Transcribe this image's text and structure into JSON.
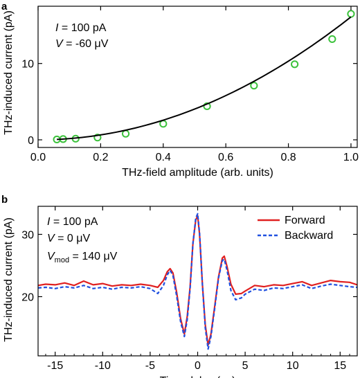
{
  "chart_data": [
    {
      "panel": "a",
      "type": "scatter",
      "xlabel": "THz-field amplitude (arb. units)",
      "ylabel": "THz-induced current (pA)",
      "xlim": [
        0,
        1.02
      ],
      "ylim": [
        -1,
        17.5
      ],
      "xticks": [
        0.0,
        0.2,
        0.4,
        0.6,
        0.8,
        1.0
      ],
      "xtick_labels": [
        "0.0",
        "0.2",
        "0.4",
        "0.6",
        "0.8",
        "1.0"
      ],
      "yticks": [
        0,
        10
      ],
      "ytick_labels": [
        "0",
        "10"
      ],
      "annotations": [
        "I = 100 pA",
        "V = -60 μV"
      ],
      "series": [
        {
          "kind": "markers",
          "color": "#3cc23c",
          "x": [
            0.06,
            0.08,
            0.12,
            0.19,
            0.28,
            0.4,
            0.54,
            0.69,
            0.82,
            0.94,
            1.0
          ],
          "y": [
            0.05,
            0.1,
            0.15,
            0.3,
            0.8,
            2.1,
            4.4,
            7.1,
            9.9,
            13.2,
            16.5
          ]
        },
        {
          "kind": "fit-line",
          "color": "#000000",
          "fit_form": "y = 16.1·x^2",
          "fit_coefficient": 16.1,
          "x_range": [
            0.06,
            1.0
          ]
        }
      ]
    },
    {
      "panel": "b",
      "type": "line",
      "xlabel": "Time delay (ps)",
      "ylabel": "THz-induced current (pA)",
      "xlim": [
        -16.8,
        16.8
      ],
      "ylim": [
        10.5,
        34.5
      ],
      "xticks": [
        -15,
        -10,
        -5,
        0,
        5,
        10,
        15
      ],
      "xtick_labels": [
        "-15",
        "-10",
        "-5",
        "0",
        "5",
        "10",
        "15"
      ],
      "yticks": [
        20,
        30
      ],
      "ytick_labels": [
        "20",
        "30"
      ],
      "annotations": [
        "I = 100 pA",
        "V = 0 μV",
        "V",
        "mod",
        " = 140 μV"
      ],
      "legend_position": "top-right",
      "series": [
        {
          "name": "Forward",
          "color": "#e02020",
          "style": "solid",
          "x": [
            -16.8,
            -16,
            -15,
            -14,
            -13,
            -12,
            -11,
            -10,
            -9,
            -8,
            -7,
            -6,
            -5,
            -4.2,
            -3.6,
            -3.2,
            -2.9,
            -2.6,
            -2.2,
            -1.8,
            -1.4,
            -1.1,
            -0.8,
            -0.5,
            -0.2,
            0,
            0.2,
            0.5,
            0.8,
            1.1,
            1.4,
            1.8,
            2.2,
            2.6,
            2.8,
            3.1,
            3.5,
            4.0,
            4.6,
            5,
            6,
            7,
            8,
            9,
            10,
            11,
            12,
            13,
            14,
            15,
            16,
            16.8
          ],
          "y": [
            21.8,
            22.0,
            21.9,
            22.2,
            21.8,
            22.5,
            21.9,
            22.1,
            21.7,
            21.9,
            21.8,
            22.0,
            21.8,
            21.5,
            22.6,
            24.0,
            24.5,
            23.8,
            20.6,
            16.5,
            14.0,
            16.8,
            21.5,
            28.5,
            32.3,
            33.0,
            30.0,
            22.0,
            15.5,
            12.2,
            14.0,
            18.5,
            23.2,
            26.2,
            26.5,
            24.8,
            22.0,
            20.4,
            20.5,
            20.9,
            21.8,
            21.6,
            21.9,
            21.8,
            22.1,
            22.4,
            21.8,
            22.2,
            22.6,
            22.4,
            22.3,
            21.9
          ]
        },
        {
          "name": "Backward",
          "color": "#2050e0",
          "style": "dashed",
          "x": [
            -16.8,
            -16,
            -15,
            -14,
            -13,
            -12,
            -11,
            -10,
            -9,
            -8,
            -7,
            -6,
            -5,
            -4.2,
            -3.6,
            -3.2,
            -2.9,
            -2.6,
            -2.2,
            -1.8,
            -1.4,
            -1.1,
            -0.8,
            -0.5,
            -0.2,
            0,
            0.2,
            0.5,
            0.8,
            1.1,
            1.4,
            1.8,
            2.2,
            2.6,
            2.8,
            3.1,
            3.5,
            4.0,
            4.6,
            5,
            6,
            7,
            8,
            9,
            10,
            11,
            12,
            13,
            14,
            15,
            16,
            16.8
          ],
          "y": [
            21.4,
            21.5,
            21.3,
            21.6,
            21.4,
            21.8,
            21.3,
            21.5,
            21.2,
            21.5,
            21.4,
            21.6,
            21.3,
            20.5,
            21.8,
            23.5,
            24.2,
            23.4,
            20.0,
            16.0,
            13.6,
            16.3,
            21.2,
            28.5,
            32.6,
            33.3,
            30.2,
            22.0,
            15.0,
            11.6,
            13.6,
            18.2,
            23.0,
            25.8,
            26.0,
            24.2,
            21.0,
            19.5,
            19.8,
            20.4,
            21.2,
            21.0,
            21.4,
            21.3,
            21.6,
            21.9,
            21.3,
            21.7,
            22.0,
            21.8,
            21.6,
            21.5
          ]
        }
      ]
    }
  ]
}
